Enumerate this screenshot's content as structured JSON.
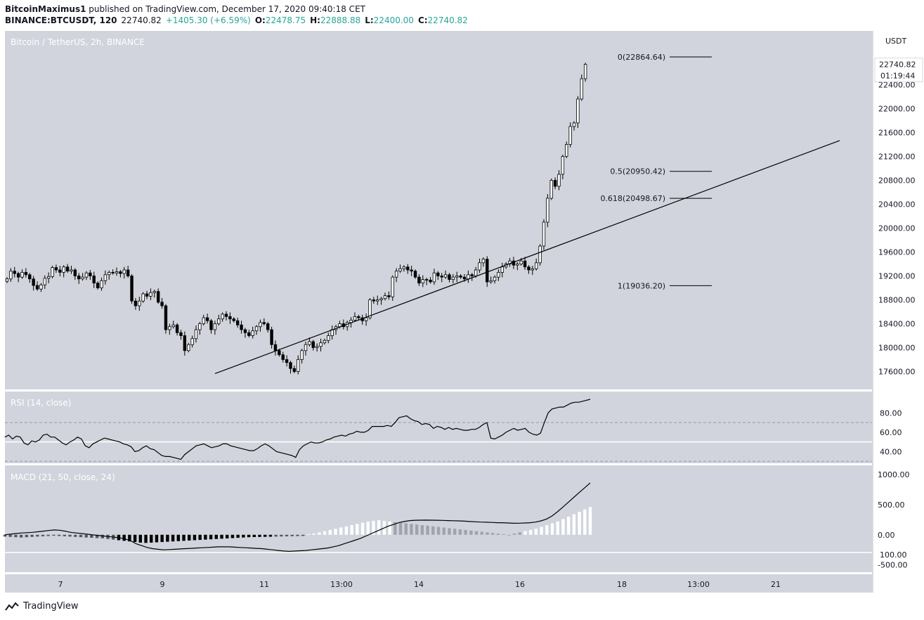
{
  "header": {
    "line1_author": "BitcoinMaximus1",
    "line1_rest": " published on TradingView.com, December 17, 2020 09:40:18 CET",
    "symbol": "BINANCE:BTCUSDT, 120",
    "last": "22740.82",
    "change": "+1405.30 (+6.59%)",
    "open_label": "O:",
    "open": "22478.75",
    "high_label": "H:",
    "high": "22888.88",
    "low_label": "L:",
    "low": "22400.00",
    "close_label": "C:",
    "close": "22740.82"
  },
  "footer": {
    "brand": "TradingView"
  },
  "colors": {
    "pane_bg": "#d1d4dc",
    "axis_bg": "#ffffff",
    "candle_up": "#ffffff",
    "candle_down": "#000000",
    "line": "#000000",
    "price_tag": "#ffffff"
  },
  "chart_data": {
    "type": "candlestick",
    "title": "Bitcoin / TetherUS, 2h, BINANCE",
    "currency": "USDT",
    "last_price_label": "22740.82",
    "countdown": "01:19:44",
    "y_ticks": [
      17600,
      18000,
      18400,
      18800,
      19200,
      19600,
      20000,
      20400,
      20800,
      21200,
      21600,
      22000,
      22400
    ],
    "ylim": [
      17300,
      23300
    ],
    "x_ticks": [
      "7",
      "9",
      "11",
      "13:00",
      "14",
      "16",
      "18",
      "13:00",
      "21"
    ],
    "fibonacci": [
      {
        "label": "0(22864.64)",
        "level": 22864.64
      },
      {
        "label": "0.5(20950.42)",
        "level": 20950.42
      },
      {
        "label": "0.618(20498.67)",
        "level": 20498.67
      },
      {
        "label": "1(19036.20)",
        "level": 19036.2
      }
    ],
    "trendline": {
      "from": [
        17565,
        58
      ],
      "to": [
        21465,
        232
      ]
    },
    "closes": [
      19150,
      19280,
      19240,
      19180,
      19260,
      19220,
      19150,
      19040,
      18980,
      19050,
      19160,
      19190,
      19340,
      19300,
      19260,
      19350,
      19280,
      19300,
      19200,
      19150,
      19180,
      19250,
      19200,
      19080,
      19000,
      19120,
      19220,
      19260,
      19250,
      19270,
      19240,
      19300,
      19200,
      18780,
      18700,
      18780,
      18900,
      18860,
      18920,
      18940,
      18760,
      18700,
      18300,
      18350,
      18380,
      18250,
      18200,
      17950,
      18050,
      18150,
      18300,
      18400,
      18500,
      18450,
      18300,
      18400,
      18480,
      18560,
      18520,
      18480,
      18450,
      18380,
      18300,
      18250,
      18200,
      18280,
      18350,
      18420,
      18400,
      18300,
      18050,
      17950,
      17880,
      17800,
      17750,
      17650,
      17600,
      17800,
      17950,
      18050,
      18100,
      18000,
      18020,
      18080,
      18120,
      18200,
      18300,
      18350,
      18400,
      18350,
      18420,
      18460,
      18520,
      18500,
      18450,
      18500,
      18800,
      18780,
      18800,
      18820,
      18870,
      18850,
      19180,
      19280,
      19320,
      19350,
      19300,
      19280,
      19180,
      19080,
      19140,
      19130,
      19100,
      19250,
      19200,
      19180,
      19220,
      19140,
      19180,
      19200,
      19180,
      19150,
      19220,
      19200,
      19300,
      19420,
      19480,
      19100,
      19120,
      19180,
      19260,
      19350,
      19400,
      19450,
      19380,
      19400,
      19450,
      19350,
      19300,
      19320,
      19420,
      19700,
      20100,
      20500,
      20800,
      20700,
      20900,
      21200,
      21400,
      21700,
      21760,
      22160,
      22500,
      22740
    ],
    "rsi": {
      "title": "RSI (14, close)",
      "y_ticks": [
        40,
        60,
        80
      ],
      "ylim": [
        28,
        102
      ],
      "bands": [
        50,
        70,
        30
      ],
      "values": [
        55,
        57,
        53,
        56,
        55,
        49,
        47,
        51,
        50,
        52,
        57,
        58,
        55,
        55,
        52,
        49,
        47,
        50,
        52,
        55,
        53,
        46,
        44,
        48,
        50,
        52,
        54,
        53,
        52,
        51,
        50,
        48,
        47,
        45,
        40,
        41,
        44,
        46,
        43,
        42,
        39,
        36,
        35,
        35,
        34,
        33,
        32,
        37,
        40,
        43,
        46,
        47,
        48,
        46,
        44,
        45,
        46,
        48,
        48,
        46,
        45,
        44,
        43,
        42,
        41,
        41,
        43,
        46,
        48,
        46,
        43,
        40,
        39,
        38,
        37,
        36,
        34,
        42,
        46,
        48,
        50,
        49,
        49,
        50,
        52,
        53,
        55,
        56,
        57,
        56,
        58,
        59,
        61,
        60,
        60,
        62,
        66,
        66,
        66,
        66,
        67,
        66,
        70,
        75,
        76,
        77,
        74,
        72,
        71,
        68,
        69,
        68,
        64,
        66,
        65,
        63,
        65,
        63,
        64,
        63,
        62,
        62,
        63,
        63,
        65,
        68,
        70,
        54,
        53,
        55,
        57,
        60,
        62,
        64,
        62,
        63,
        64,
        60,
        58,
        57,
        59,
        70,
        80,
        84,
        85,
        86,
        86,
        88,
        90,
        91,
        91,
        92,
        93,
        94
      ]
    },
    "macd": {
      "title": "MACD (21, 50, close, 24)",
      "y_ticks": [
        1000,
        500,
        0,
        -500
      ],
      "ylim": [
        -620,
        1150
      ],
      "macd": [
        0,
        10,
        20,
        30,
        35,
        40,
        50,
        60,
        70,
        80,
        75,
        60,
        40,
        30,
        20,
        10,
        0,
        -10,
        -20,
        -30,
        -40,
        -50,
        -70,
        -100,
        -150,
        -180,
        -210,
        -230,
        -240,
        -250,
        -245,
        -240,
        -235,
        -230,
        -225,
        -220,
        -215,
        -210,
        -205,
        -200,
        -200,
        -200,
        -205,
        -210,
        -215,
        -220,
        -225,
        -230,
        -240,
        -250,
        -260,
        -270,
        -275,
        -270,
        -265,
        -260,
        -250,
        -240,
        -230,
        -220,
        -200,
        -180,
        -150,
        -120,
        -90,
        -60,
        -20,
        20,
        60,
        100,
        140,
        170,
        200,
        220,
        235,
        240,
        242,
        243,
        242,
        240,
        238,
        235,
        232,
        230,
        225,
        220,
        215,
        210,
        208,
        205,
        200,
        200,
        195,
        190,
        192,
        195,
        200,
        210,
        230,
        260,
        310,
        380,
        460,
        540,
        620,
        700,
        780,
        860
      ],
      "hist": [
        -30,
        -35,
        -40,
        -45,
        -40,
        -35,
        -30,
        -25,
        -20,
        -15,
        -20,
        -25,
        -30,
        -35,
        -40,
        -45,
        -50,
        -55,
        -60,
        -70,
        -80,
        -90,
        -100,
        -110,
        -120,
        -130,
        -135,
        -130,
        -125,
        -120,
        -115,
        -110,
        -105,
        -100,
        -95,
        -90,
        -85,
        -80,
        -75,
        -70,
        -65,
        -60,
        -55,
        -50,
        -45,
        -40,
        -38,
        -36,
        -34,
        -32,
        -30,
        -28,
        -26,
        -24,
        -22,
        -20,
        10,
        20,
        40,
        60,
        80,
        100,
        120,
        140,
        160,
        180,
        200,
        220,
        230,
        240,
        230,
        220,
        210,
        200,
        190,
        180,
        170,
        160,
        150,
        140,
        130,
        120,
        110,
        100,
        90,
        80,
        70,
        60,
        50,
        40,
        30,
        20,
        10,
        0,
        20,
        40,
        60,
        80,
        100,
        130,
        160,
        190,
        220,
        260,
        300,
        340,
        380,
        420,
        460
      ]
    }
  }
}
